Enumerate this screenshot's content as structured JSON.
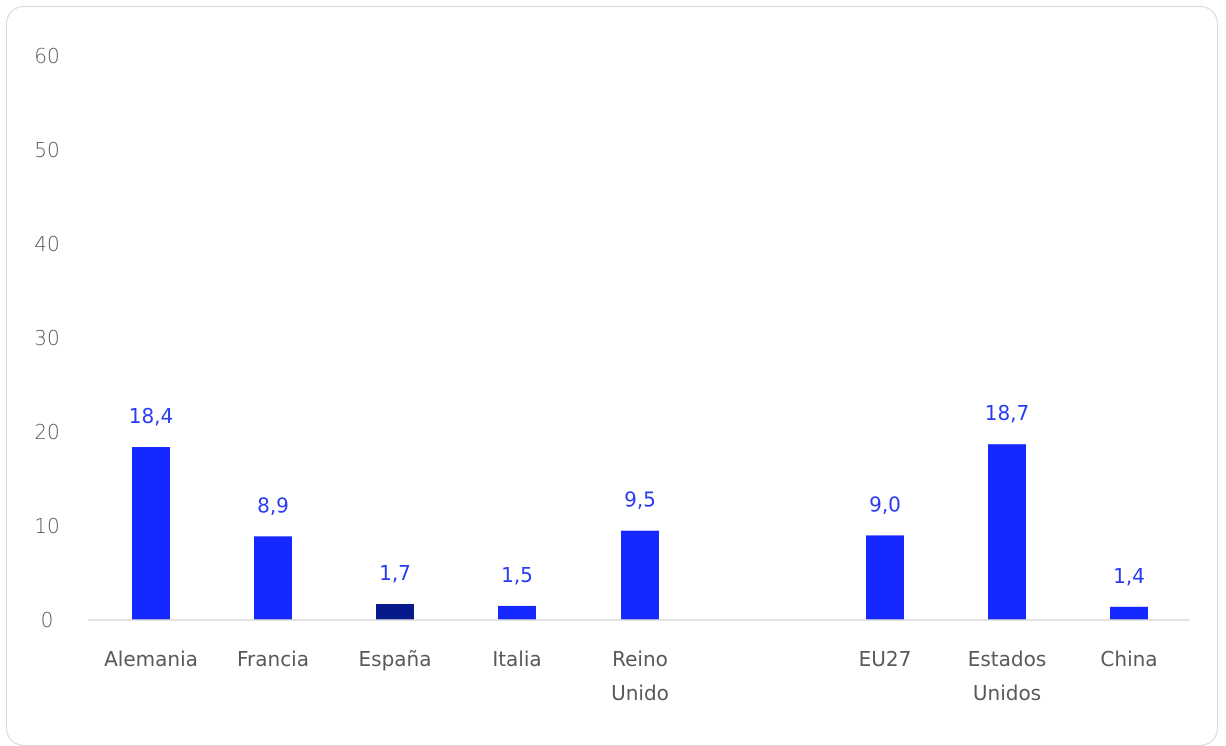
{
  "chart_data": {
    "type": "bar",
    "categories": [
      [
        "Alemania"
      ],
      [
        "Francia"
      ],
      [
        "España"
      ],
      [
        "Italia"
      ],
      [
        "Reino",
        "Unido"
      ],
      [
        "EU27"
      ],
      [
        "Estados",
        "Unidos"
      ],
      [
        "China"
      ]
    ],
    "values": [
      18.4,
      8.9,
      1.7,
      1.5,
      9.5,
      9.0,
      18.7,
      1.4
    ],
    "value_labels": [
      "18,4",
      "8,9",
      "1,7",
      "1,5",
      "9,5",
      "9,0",
      "18,7",
      "1,4"
    ],
    "highlight_index": 2,
    "yticks": [
      "0",
      "10",
      "20",
      "30",
      "40",
      "50",
      "60"
    ],
    "ylim": [
      0,
      60
    ],
    "grid": false,
    "colors": {
      "bar": "#1428ff",
      "highlight": "#061a8c",
      "label": "#2a3cf0",
      "axis": "#d9d9d9"
    }
  }
}
